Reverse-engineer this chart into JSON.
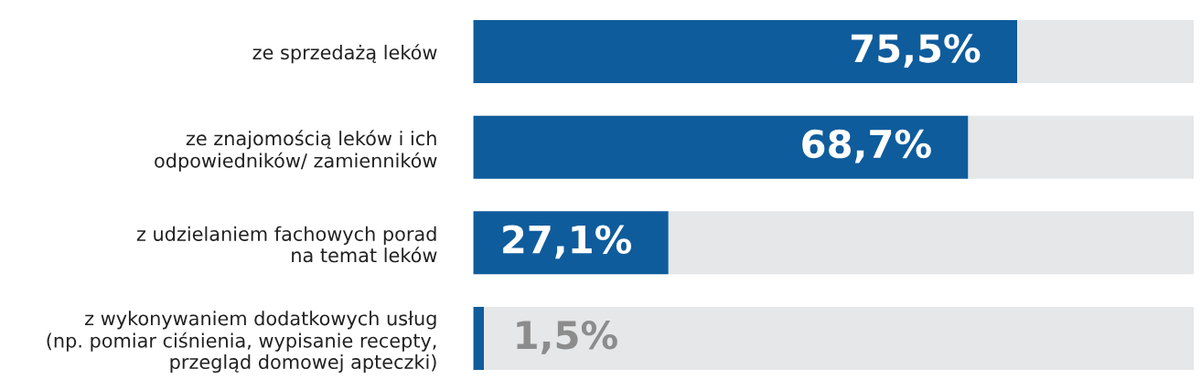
{
  "chart_data": {
    "type": "bar",
    "orientation": "horizontal",
    "stacked": true,
    "categories": [
      "ze sprzedażą leków",
      "ze znajomością leków i ich\nodpowiedników/ zamienników",
      "z udzielaniem fachowych porad\nna temat leków",
      "z wykonywaniem dodatkowych usług\n(np. pomiar ciśnienia, wypisanie recepty,\nprzegląd domowej apteczki)"
    ],
    "series": [
      {
        "color": "#0f5c9c",
        "values": [
          75.5,
          68.7,
          27.1,
          1.5
        ],
        "value_labels": [
          "75,5%",
          "68,7%",
          "27,1%",
          "1,5%"
        ]
      },
      {
        "color": "#e6e7e8",
        "values": [
          24.5,
          31.3,
          72.9,
          98.5
        ]
      }
    ],
    "xlim": [
      0,
      100
    ],
    "tick_labels": "y",
    "grid": false,
    "legend": false
  }
}
